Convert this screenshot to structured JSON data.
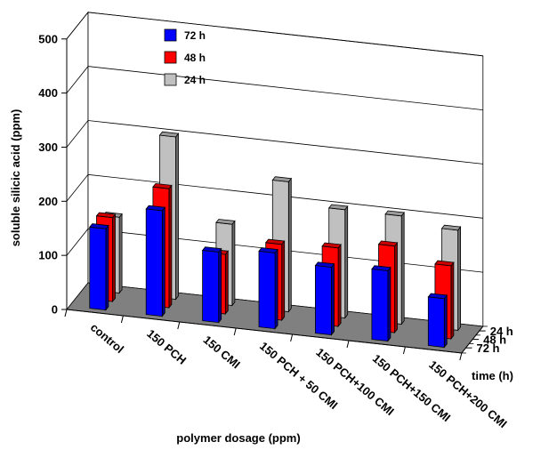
{
  "chart_data": {
    "type": "bar",
    "subtype": "3d-grouped-bar",
    "title": "",
    "ylabel": "soluble silicic acid (ppm)",
    "xlabel": "polymer dosage (ppm)",
    "zlabel": "time (h)",
    "ylim": [
      0,
      500
    ],
    "yticks": [
      0,
      100,
      200,
      300,
      400,
      500
    ],
    "grid": true,
    "legend_position": "top-left",
    "categories": [
      "control",
      "150 PCH",
      "150 CMI",
      "150 PCH + 50 CMI",
      "150 PCH+100 CMI",
      "150 PCH+150 CMI",
      "150 PCH+200 CMI"
    ],
    "depth_labels": [
      "24 h",
      "48 h",
      "72 h"
    ],
    "series": [
      {
        "name": "72 h",
        "color": "#0000ff",
        "values": [
          150,
          195,
          130,
          140,
          125,
          130,
          90
        ]
      },
      {
        "name": "48 h",
        "color": "#ff0000",
        "values": [
          155,
          220,
          110,
          140,
          145,
          160,
          135
        ]
      },
      {
        "name": "24 h",
        "color": "#c0c0c0",
        "values": [
          140,
          300,
          150,
          240,
          200,
          200,
          185
        ]
      }
    ],
    "legend": [
      {
        "label": "72 h",
        "color": "#0000ff"
      },
      {
        "label": "48 h",
        "color": "#ff0000"
      },
      {
        "label": "24 h",
        "color": "#c0c0c0"
      }
    ]
  }
}
